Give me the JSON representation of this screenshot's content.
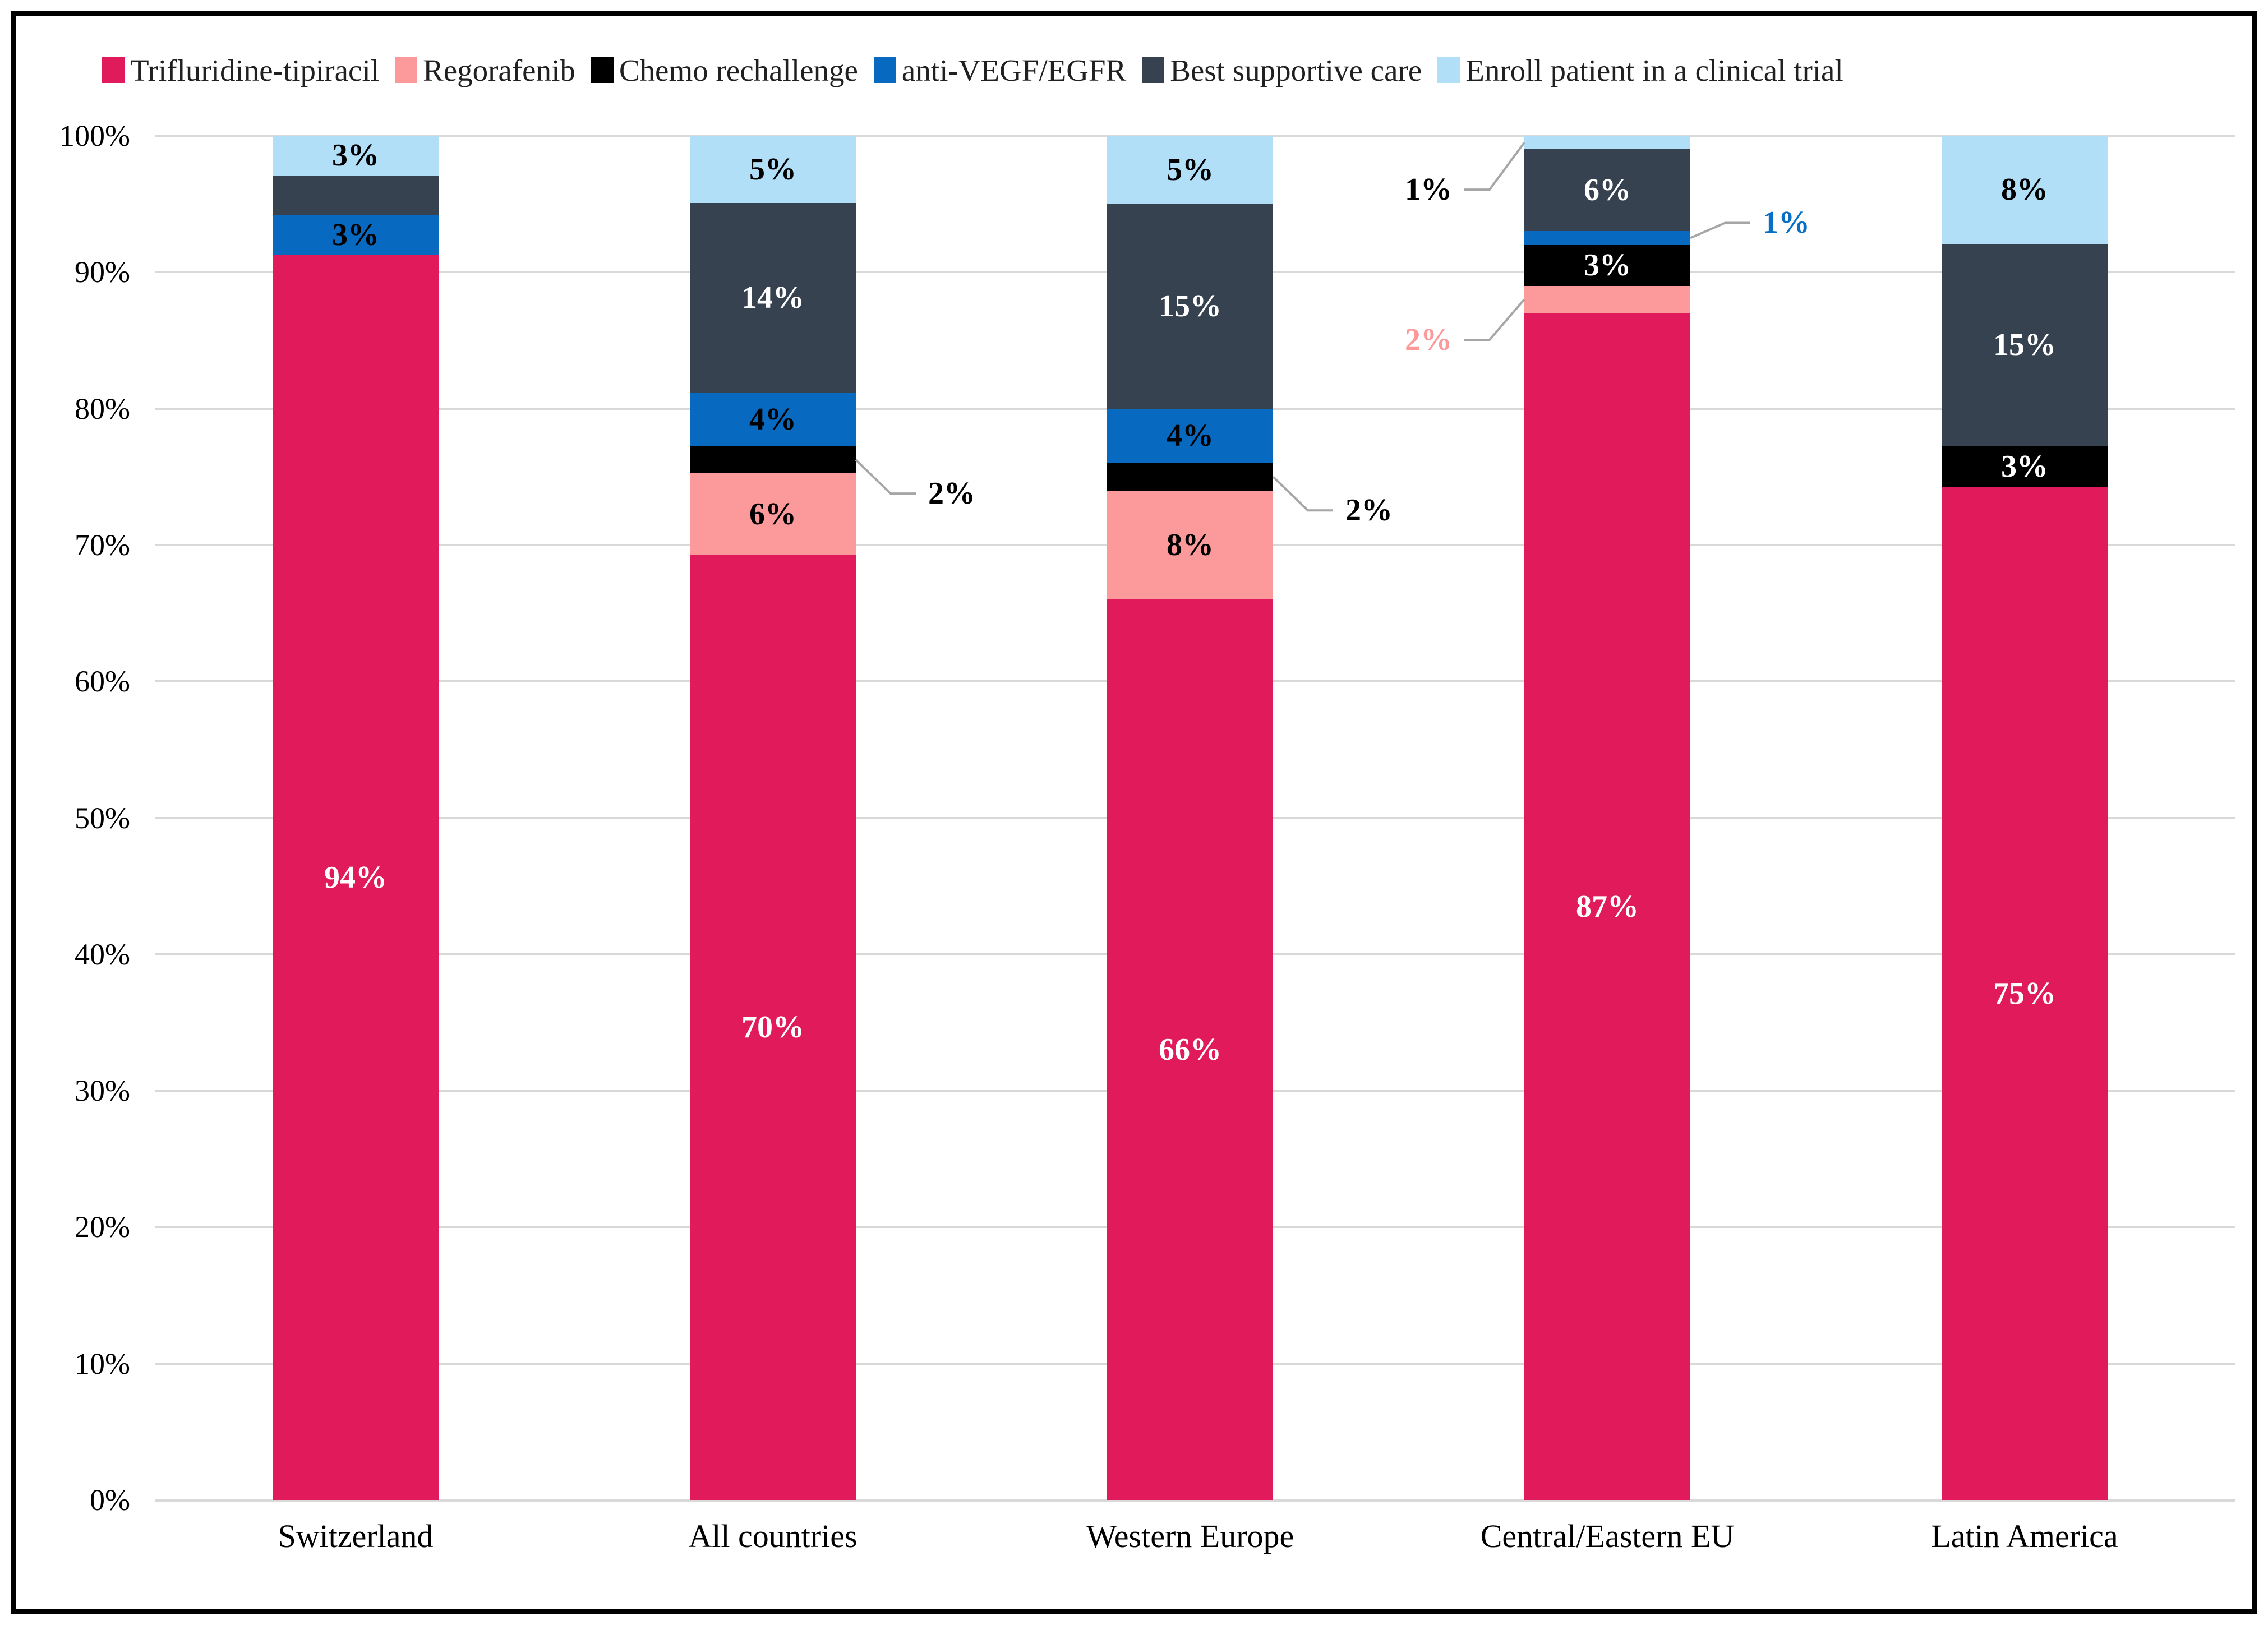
{
  "chart_data": {
    "type": "bar",
    "stacked": true,
    "orientation": "vertical",
    "title": "",
    "categories": [
      "Switzerland",
      "All countries",
      "Western Europe",
      "Central/Eastern EU",
      "Latin America"
    ],
    "series": [
      {
        "name": "Trifluridine-tipiracil",
        "color": "#E01A5B",
        "values": [
          94,
          70,
          66,
          87,
          75
        ]
      },
      {
        "name": "Regorafenib",
        "color": "#FB999B",
        "values": [
          0,
          6,
          8,
          2,
          0
        ]
      },
      {
        "name": "Chemo rechallenge",
        "color": "#000000",
        "values": [
          0,
          2,
          2,
          3,
          3
        ]
      },
      {
        "name": "anti-VEGF/EGFR",
        "color": "#0769C0",
        "values": [
          3,
          4,
          4,
          1,
          0
        ]
      },
      {
        "name": "Best supportive care",
        "color": "#36424F",
        "values": [
          3,
          14,
          15,
          6,
          15
        ]
      },
      {
        "name": "Enroll patient in a clinical trial",
        "color": "#B2DFF8",
        "values": [
          3,
          5,
          5,
          1,
          8
        ]
      }
    ],
    "segment_labels": [
      {
        "category": 0,
        "series": 0,
        "text": "94%",
        "color": "#FFFFFF"
      },
      {
        "category": 0,
        "series": 3,
        "text": "3%",
        "color": "#000000"
      },
      {
        "category": 0,
        "series": 5,
        "text": "3%",
        "color": "#000000"
      },
      {
        "category": 1,
        "series": 0,
        "text": "70%",
        "color": "#FFFFFF"
      },
      {
        "category": 1,
        "series": 1,
        "text": "6%",
        "color": "#000000"
      },
      {
        "category": 1,
        "series": 3,
        "text": "4%",
        "color": "#000000"
      },
      {
        "category": 1,
        "series": 4,
        "text": "14%",
        "color": "#FFFFFF"
      },
      {
        "category": 1,
        "series": 5,
        "text": "5%",
        "color": "#000000"
      },
      {
        "category": 2,
        "series": 0,
        "text": "66%",
        "color": "#FFFFFF"
      },
      {
        "category": 2,
        "series": 1,
        "text": "8%",
        "color": "#000000"
      },
      {
        "category": 2,
        "series": 3,
        "text": "4%",
        "color": "#000000"
      },
      {
        "category": 2,
        "series": 4,
        "text": "15%",
        "color": "#FFFFFF"
      },
      {
        "category": 2,
        "series": 5,
        "text": "5%",
        "color": "#000000"
      },
      {
        "category": 3,
        "series": 0,
        "text": "87%",
        "color": "#FFFFFF"
      },
      {
        "category": 3,
        "series": 2,
        "text": "3%",
        "color": "#FFFFFF"
      },
      {
        "category": 3,
        "series": 4,
        "text": "6%",
        "color": "#FFFFFF"
      },
      {
        "category": 4,
        "series": 0,
        "text": "75%",
        "color": "#FFFFFF"
      },
      {
        "category": 4,
        "series": 2,
        "text": "3%",
        "color": "#FFFFFF"
      },
      {
        "category": 4,
        "series": 4,
        "text": "15%",
        "color": "#FFFFFF"
      },
      {
        "category": 4,
        "series": 5,
        "text": "8%",
        "color": "#000000"
      }
    ],
    "callouts": [
      {
        "category": 1,
        "series": 2,
        "text": "2%",
        "color": "#000000",
        "side": "right",
        "dy": 60
      },
      {
        "category": 2,
        "series": 2,
        "text": "2%",
        "color": "#000000",
        "side": "right",
        "dy": 60
      },
      {
        "category": 3,
        "series": 5,
        "text": "1%",
        "color": "#000000",
        "side": "left",
        "dy": 84
      },
      {
        "category": 3,
        "series": 3,
        "text": "1%",
        "color": "#0770C6",
        "side": "right",
        "dy": -27
      },
      {
        "category": 3,
        "series": 1,
        "text": "2%",
        "color": "#FB999B",
        "side": "left",
        "dy": 72
      }
    ],
    "y_axis": {
      "min": 0,
      "max": 100,
      "ticks": [
        "0%",
        "10%",
        "20%",
        "30%",
        "40%",
        "50%",
        "60%",
        "70%",
        "80%",
        "90%",
        "100%"
      ]
    },
    "grid": true,
    "gridline_color": "#D9D9D9",
    "leader_line_color": "#A6A6A6",
    "legend_position": "top",
    "background": "#FFFFFF",
    "border_color": "#000000"
  }
}
